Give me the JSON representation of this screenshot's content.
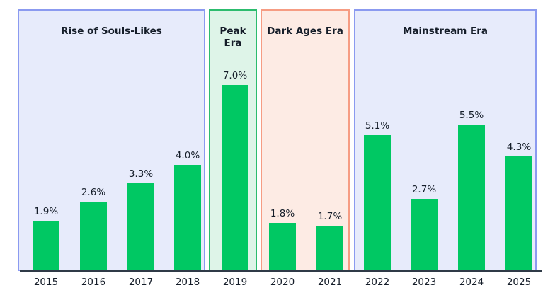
{
  "chart_data": {
    "type": "bar",
    "categories": [
      "2015",
      "2016",
      "2017",
      "2018",
      "2019",
      "2020",
      "2021",
      "2022",
      "2023",
      "2024",
      "2025"
    ],
    "values": [
      1.9,
      2.6,
      3.3,
      4.0,
      7.0,
      1.8,
      1.7,
      5.1,
      2.7,
      5.5,
      4.3
    ],
    "value_labels": [
      "1.9%",
      "2.6%",
      "3.3%",
      "4.0%",
      "7.0%",
      "1.8%",
      "1.7%",
      "5.1%",
      "2.7%",
      "5.5%",
      "4.3%"
    ],
    "title": "",
    "xlabel": "",
    "ylabel": "",
    "ylim": [
      0,
      9.8
    ],
    "grid": false,
    "legend": "none",
    "bar_color": "#00c863",
    "axis_color": "#2f3a47",
    "text_color": "#151d29",
    "regions": [
      {
        "label": "Rise of Souls-Likes",
        "start": "2015",
        "end": "2018",
        "fill": "#e7ebfb",
        "border": "#8b9af0"
      },
      {
        "label": "Peak Era",
        "start": "2019",
        "end": "2019",
        "fill": "#def4e8",
        "border": "#2cbc6e"
      },
      {
        "label": "Dark Ages Era",
        "start": "2020",
        "end": "2021",
        "fill": "#fdebe4",
        "border": "#f69c83"
      },
      {
        "label": "Mainstream Era",
        "start": "2022",
        "end": "2025",
        "fill": "#e7ebfb",
        "border": "#8b9af0"
      }
    ]
  }
}
